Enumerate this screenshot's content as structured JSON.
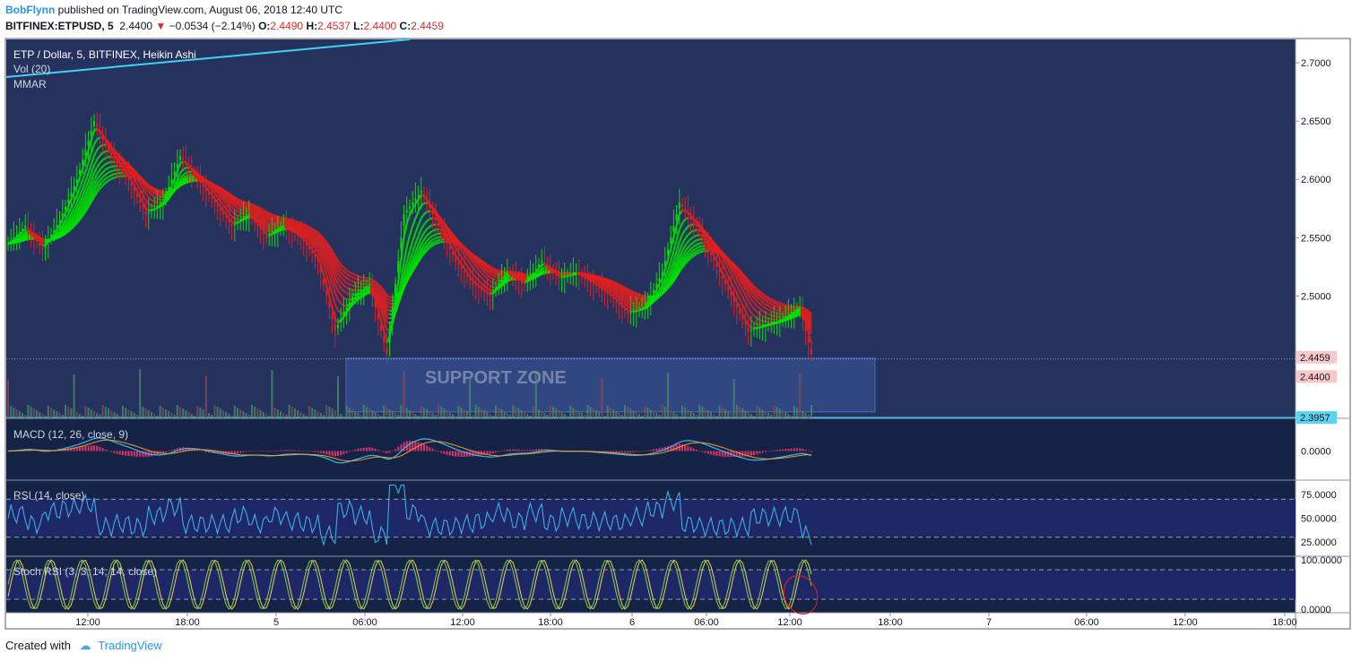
{
  "header": {
    "author": "BobFlynn",
    "published": "published on TradingView.com, August 06, 2018 12:40 UTC",
    "symbol": "BITFINEX:ETPUSD, 5",
    "last": "2.4400",
    "change": "−0.0534 (−2.14%)",
    "o_label": "O:",
    "o_val": "2.4490",
    "h_label": "H:",
    "h_val": "2.4537",
    "l_label": "L:",
    "l_val": "2.4400",
    "c_label": "C:",
    "c_val": "2.4459"
  },
  "legend": {
    "title": "ETP / Dollar, 5, BITFINEX, Heikin Ashi",
    "vol": "Vol (20)",
    "mmar": "MMAR",
    "macd": "MACD (12, 26, close, 9)",
    "rsi": "RSI (14, close)",
    "stoch": "Stoch RSI (3, 3, 14, 14, close)"
  },
  "annotation": {
    "support": "SUPPORT ZONE"
  },
  "footer": {
    "created": "Created with",
    "brand": "TradingView"
  },
  "colors": {
    "bg": "#26325e",
    "panel": "#152446",
    "band": "#1f2867",
    "up": "#00e000",
    "down": "#e02020",
    "cyan": "#3fd3f0",
    "macd": "#3fb9f0",
    "signal": "#f0a030",
    "hist": "#e0306a",
    "stoch_k": "#7cd34a",
    "stoch_d": "#f0d050",
    "support": "#3a5aa0"
  },
  "chart_data": [
    {
      "type": "candlestick",
      "title": "ETP / Dollar, 5, BITFINEX, Heikin Ashi",
      "x_ticks": [
        "12:00",
        "18:00",
        "5",
        "06:00",
        "12:00",
        "18:00",
        "6",
        "06:00",
        "12:00",
        "18:00",
        "7",
        "06:00",
        "12:00",
        "18:00"
      ],
      "y_ticks": [
        "2.7000",
        "2.6500",
        "2.6000",
        "2.5500",
        "2.5000"
      ],
      "ylim": [
        2.395,
        2.72
      ],
      "price_tags": [
        "2.4459",
        "2.4400",
        "2.3957"
      ],
      "support_zone": [
        2.4005,
        2.4465
      ],
      "support_line": 2.3957,
      "price_path": [
        [
          0,
          2.545
        ],
        [
          6,
          2.56
        ],
        [
          12,
          2.54
        ],
        [
          18,
          2.565
        ],
        [
          24,
          2.6
        ],
        [
          30,
          2.65
        ],
        [
          36,
          2.62
        ],
        [
          42,
          2.6
        ],
        [
          48,
          2.57
        ],
        [
          54,
          2.58
        ],
        [
          60,
          2.62
        ],
        [
          66,
          2.6
        ],
        [
          72,
          2.58
        ],
        [
          78,
          2.56
        ],
        [
          84,
          2.57
        ],
        [
          90,
          2.55
        ],
        [
          96,
          2.56
        ],
        [
          102,
          2.55
        ],
        [
          108,
          2.53
        ],
        [
          114,
          2.47
        ],
        [
          120,
          2.5
        ],
        [
          126,
          2.51
        ],
        [
          132,
          2.45
        ],
        [
          138,
          2.57
        ],
        [
          144,
          2.59
        ],
        [
          150,
          2.56
        ],
        [
          156,
          2.53
        ],
        [
          162,
          2.51
        ],
        [
          168,
          2.5
        ],
        [
          174,
          2.52
        ],
        [
          180,
          2.51
        ],
        [
          186,
          2.53
        ],
        [
          192,
          2.515
        ],
        [
          198,
          2.52
        ],
        [
          204,
          2.51
        ],
        [
          210,
          2.5
        ],
        [
          216,
          2.485
        ],
        [
          222,
          2.49
        ],
        [
          228,
          2.52
        ],
        [
          234,
          2.58
        ],
        [
          240,
          2.56
        ],
        [
          246,
          2.53
        ],
        [
          252,
          2.5
        ],
        [
          258,
          2.47
        ],
        [
          264,
          2.475
        ],
        [
          270,
          2.48
        ],
        [
          276,
          2.49
        ],
        [
          280,
          2.45
        ]
      ]
    },
    {
      "type": "bar",
      "title": "Vol (20)",
      "note": "volume histogram (values not labeled)"
    },
    {
      "type": "line",
      "title": "MACD (12, 26, close, 9)",
      "y_ticks": [
        "0.0000"
      ]
    },
    {
      "type": "line",
      "title": "RSI (14, close)",
      "y_ticks": [
        "75.0000",
        "50.0000",
        "25.0000"
      ],
      "ylim": [
        10,
        90
      ],
      "bands": [
        70,
        30
      ]
    },
    {
      "type": "line",
      "title": "Stoch RSI (3, 3, 14, 14, close)",
      "y_ticks": [
        "100.0000",
        "0.0000"
      ],
      "ylim": [
        0,
        100
      ],
      "bands": [
        80,
        20
      ]
    }
  ]
}
